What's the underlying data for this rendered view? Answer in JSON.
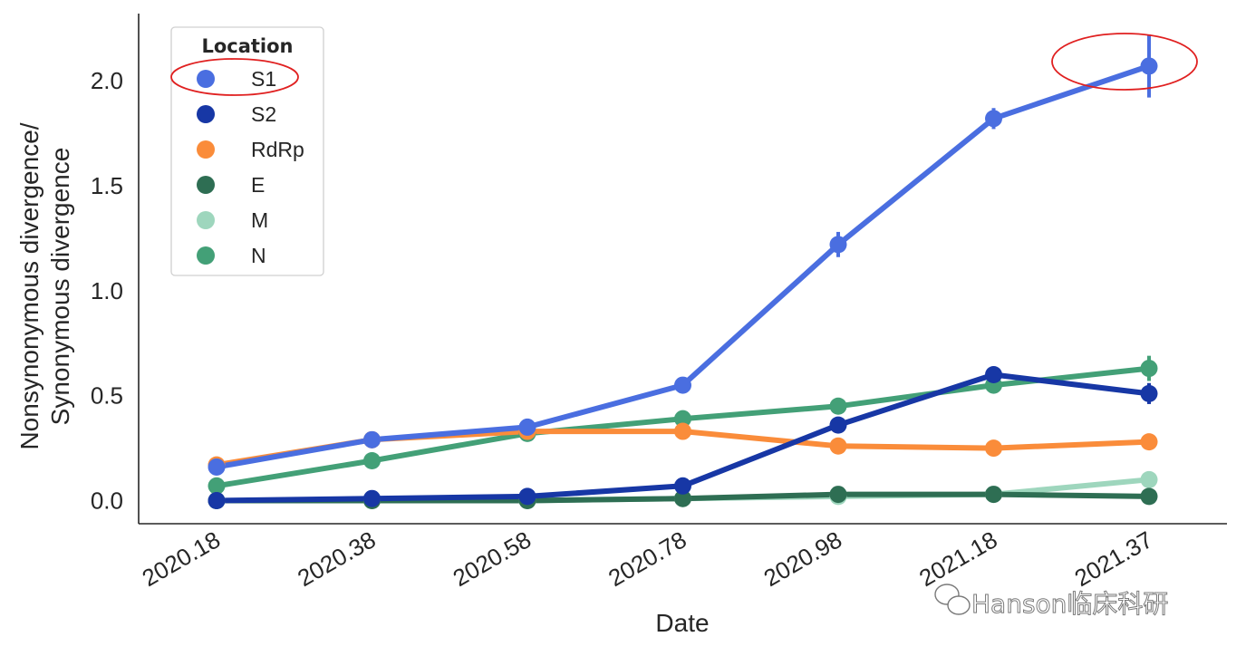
{
  "chart_data": {
    "type": "line",
    "xlabel": "Date",
    "ylabel_lines": [
      "Nonsynonymous divergence/",
      "Synonymous divergence"
    ],
    "x": [
      "2020.18",
      "2020.38",
      "2020.58",
      "2020.78",
      "2020.98",
      "2021.18",
      "2021.37"
    ],
    "ylim": [
      -0.11,
      2.32
    ],
    "yticks": [
      0.0,
      0.5,
      1.0,
      1.5,
      2.0
    ],
    "ytick_labels": [
      "0.0",
      "0.5",
      "1.0",
      "1.5",
      "2.0"
    ],
    "grid": false,
    "legend": {
      "title": "Location",
      "placement": "top-left"
    },
    "series": [
      {
        "name": "S1",
        "color": "#4a6ee0",
        "values": [
          0.16,
          0.29,
          0.35,
          0.55,
          1.22,
          1.82,
          2.07
        ],
        "errors": [
          0.01,
          0.01,
          0.01,
          0.01,
          0.06,
          0.05,
          0.15
        ]
      },
      {
        "name": "S2",
        "color": "#1737a5",
        "values": [
          0.0,
          0.01,
          0.02,
          0.07,
          0.36,
          0.6,
          0.51
        ],
        "errors": [
          0.0,
          0.0,
          0.0,
          0.0,
          0.0,
          0.02,
          0.05
        ]
      },
      {
        "name": "RdRp",
        "color": "#fa8c3a",
        "values": [
          0.17,
          0.29,
          0.33,
          0.33,
          0.26,
          0.25,
          0.28
        ],
        "errors": [
          0.0,
          0.0,
          0.0,
          0.0,
          0.0,
          0.0,
          0.0
        ]
      },
      {
        "name": "E",
        "color": "#2e6e53",
        "values": [
          0.0,
          0.0,
          0.0,
          0.01,
          0.03,
          0.03,
          0.02
        ],
        "errors": [
          0.0,
          0.0,
          0.0,
          0.0,
          0.0,
          0.0,
          0.0
        ]
      },
      {
        "name": "M",
        "color": "#9ed6bd",
        "values": [
          0.0,
          0.0,
          0.0,
          0.01,
          0.02,
          0.03,
          0.1
        ],
        "errors": [
          0.0,
          0.0,
          0.0,
          0.0,
          0.0,
          0.0,
          0.0
        ]
      },
      {
        "name": "N",
        "color": "#43a077",
        "values": [
          0.07,
          0.19,
          0.32,
          0.39,
          0.45,
          0.55,
          0.63
        ],
        "errors": [
          0.0,
          0.0,
          0.0,
          0.0,
          0.0,
          0.0,
          0.06
        ]
      }
    ],
    "annotations": [
      {
        "type": "ellipse",
        "target": "legend-entry-S1",
        "color": "#e02020"
      },
      {
        "type": "ellipse",
        "target": "S1-last-point",
        "color": "#e02020"
      }
    ]
  },
  "watermark": {
    "text": "Hanson临床科研",
    "icon": "wechat-icon"
  }
}
